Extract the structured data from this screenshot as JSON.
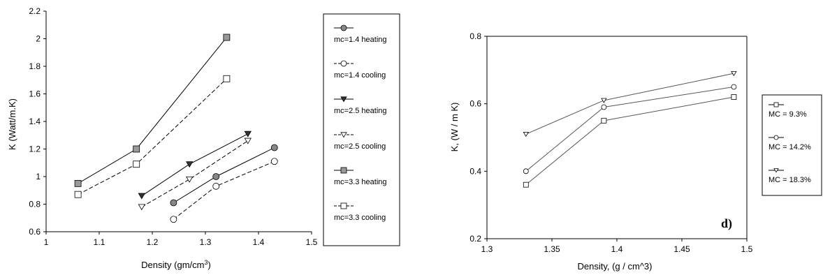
{
  "chart_data": [
    {
      "type": "line",
      "title": "",
      "xlabel": "Density (gm/cm",
      "xlabel_sup": "3",
      "xlabel_end": ")",
      "ylabel": "K (Watt/m.K)",
      "xlim": [
        1,
        1.5
      ],
      "ylim": [
        0.6,
        2.2
      ],
      "xticks": [
        "1",
        "1.1",
        "1.2",
        "1.3",
        "1.4",
        "1.5"
      ],
      "yticks": [
        "0.6",
        "0.8",
        "1",
        "1.2",
        "1.4",
        "1.6",
        "1.8",
        "2",
        "2.2"
      ],
      "legend_position": "right",
      "series": [
        {
          "name": "mc=1.4 heating",
          "marker": "circle",
          "fill": "#888888",
          "dash": "solid",
          "points": [
            [
              1.24,
              0.81
            ],
            [
              1.32,
              1.0
            ],
            [
              1.43,
              1.21
            ]
          ]
        },
        {
          "name": "mc=1.4 cooling",
          "marker": "circle",
          "fill": "#ffffff",
          "dash": "dashed",
          "points": [
            [
              1.24,
              0.69
            ],
            [
              1.32,
              0.93
            ],
            [
              1.43,
              1.11
            ]
          ]
        },
        {
          "name": "mc=2.5 heating",
          "marker": "triangle-down",
          "fill": "#333333",
          "dash": "solid",
          "points": [
            [
              1.18,
              0.86
            ],
            [
              1.27,
              1.09
            ],
            [
              1.38,
              1.31
            ]
          ]
        },
        {
          "name": "mc=2.5 cooling",
          "marker": "triangle-down",
          "fill": "#ffffff",
          "dash": "dashed",
          "points": [
            [
              1.18,
              0.78
            ],
            [
              1.27,
              0.98
            ],
            [
              1.38,
              1.26
            ]
          ]
        },
        {
          "name": "mc=3.3 heating",
          "marker": "square",
          "fill": "#999999",
          "dash": "solid",
          "points": [
            [
              1.06,
              0.95
            ],
            [
              1.17,
              1.2
            ],
            [
              1.34,
              2.01
            ]
          ]
        },
        {
          "name": "mc=3.3 cooling",
          "marker": "square",
          "fill": "#ffffff",
          "dash": "dashed",
          "points": [
            [
              1.06,
              0.87
            ],
            [
              1.17,
              1.09
            ],
            [
              1.34,
              1.71
            ]
          ]
        }
      ]
    },
    {
      "type": "line",
      "title": "",
      "annotation": "d)",
      "xlabel": "Density, (g / cm^3)",
      "ylabel": "K, (W / m K)",
      "xlim": [
        1.3,
        1.5
      ],
      "ylim": [
        0.2,
        0.8
      ],
      "xticks": [
        "1.3",
        "1.35",
        "1.4",
        "1.45",
        "1.5"
      ],
      "yticks": [
        "0.2",
        "0.4",
        "0.6",
        "0.8"
      ],
      "legend_position": "right",
      "series": [
        {
          "name": "MC = 9.3%",
          "marker": "square",
          "points": [
            [
              1.33,
              0.36
            ],
            [
              1.39,
              0.55
            ],
            [
              1.49,
              0.62
            ]
          ]
        },
        {
          "name": "MC = 14.2%",
          "marker": "circle",
          "points": [
            [
              1.33,
              0.4
            ],
            [
              1.39,
              0.59
            ],
            [
              1.49,
              0.65
            ]
          ]
        },
        {
          "name": "MC = 18.3%",
          "marker": "triangle-down",
          "points": [
            [
              1.33,
              0.51
            ],
            [
              1.39,
              0.61
            ],
            [
              1.49,
              0.69
            ]
          ]
        }
      ]
    }
  ]
}
